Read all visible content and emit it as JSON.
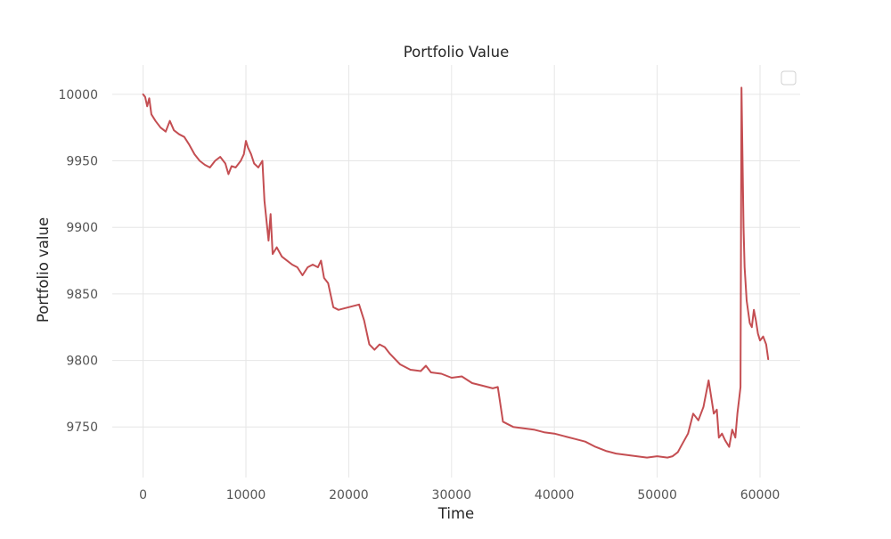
{
  "chart_data": {
    "type": "line",
    "title": "Portfolio Value",
    "xlabel": "Time",
    "ylabel": "Portfolio value",
    "xlim": [
      -3000,
      63900
    ],
    "ylim": [
      9712,
      10022
    ],
    "xticks": [
      0,
      10000,
      20000,
      30000,
      40000,
      50000,
      60000
    ],
    "yticks": [
      9750,
      9800,
      9850,
      9900,
      9950,
      10000
    ],
    "grid": true,
    "legend": {
      "placement": "top-right",
      "entries": []
    },
    "colors": {
      "line": "#c44e52",
      "grid": "#e6e6e6",
      "background": "#ffffff"
    },
    "series": [
      {
        "x": [
          0,
          200,
          400,
          600,
          800,
          1200,
          1700,
          2200,
          2600,
          3000,
          3500,
          4000,
          4500,
          5000,
          5500,
          6000,
          6500,
          7000,
          7500,
          8000,
          8300,
          8600,
          9000,
          9500,
          9800,
          10000,
          10200,
          10500,
          10800,
          11200,
          11600,
          11800,
          12000,
          12200,
          12400,
          12600,
          13000,
          13500,
          14000,
          14500,
          15000,
          15500,
          16000,
          16500,
          17000,
          17300,
          17600,
          18000,
          18500,
          19000,
          20000,
          21000,
          21500,
          22000,
          22500,
          23000,
          23500,
          24000,
          25000,
          26000,
          27000,
          27500,
          28000,
          29000,
          30000,
          31000,
          32000,
          33000,
          34000,
          34500,
          35000,
          35500,
          36000,
          37000,
          38000,
          39000,
          40000,
          41000,
          42000,
          43000,
          44000,
          45000,
          46000,
          47000,
          48000,
          49000,
          50000,
          51000,
          51500,
          52000,
          52500,
          53000,
          53500,
          54000,
          54500,
          55000,
          55300,
          55500,
          55800,
          56000,
          56300,
          56600,
          57000,
          57300,
          57600,
          57800,
          58000,
          58100,
          58200,
          58300,
          58400,
          58500,
          58700,
          59000,
          59200,
          59400,
          59600,
          59800,
          60000,
          60300,
          60600,
          60800
        ],
        "y": [
          10000,
          9998,
          9991,
          9997,
          9985,
          9980,
          9975,
          9972,
          9980,
          9973,
          9970,
          9968,
          9962,
          9955,
          9950,
          9947,
          9945,
          9950,
          9953,
          9948,
          9940,
          9946,
          9945,
          9950,
          9955,
          9965,
          9960,
          9955,
          9948,
          9945,
          9950,
          9920,
          9905,
          9890,
          9910,
          9880,
          9885,
          9878,
          9875,
          9872,
          9870,
          9864,
          9870,
          9872,
          9870,
          9875,
          9862,
          9858,
          9840,
          9838,
          9840,
          9842,
          9830,
          9812,
          9808,
          9812,
          9810,
          9805,
          9797,
          9793,
          9792,
          9796,
          9791,
          9790,
          9787,
          9788,
          9783,
          9781,
          9779,
          9780,
          9754,
          9752,
          9750,
          9749,
          9748,
          9746,
          9745,
          9743,
          9741,
          9739,
          9735,
          9732,
          9730,
          9729,
          9728,
          9727,
          9728,
          9727,
          9728,
          9731,
          9738,
          9745,
          9760,
          9755,
          9765,
          9785,
          9770,
          9760,
          9763,
          9742,
          9745,
          9740,
          9735,
          9748,
          9742,
          9760,
          9773,
          9780,
          10005,
          9950,
          9900,
          9870,
          9845,
          9828,
          9825,
          9838,
          9830,
          9820,
          9815,
          9818,
          9812,
          9801
        ]
      }
    ]
  }
}
